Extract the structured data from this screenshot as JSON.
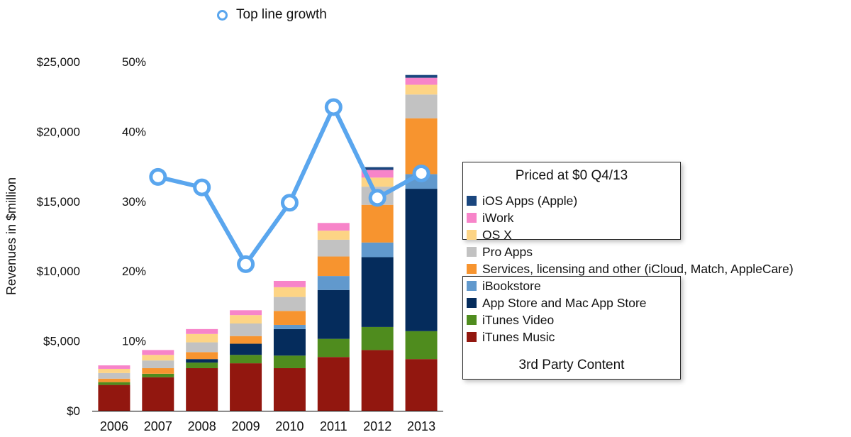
{
  "chart_data": {
    "type": "bar",
    "ylabel": "Revenues in $million",
    "categories": [
      "2006",
      "2007",
      "2008",
      "2009",
      "2010",
      "2011",
      "2012",
      "2013"
    ],
    "y_ticks": [
      "$0",
      "$5,000",
      "$10,000",
      "$15,000",
      "$20,000",
      "$25,000"
    ],
    "ylim": [
      0,
      25000
    ],
    "y2_ticks": [
      "10%",
      "20%",
      "30%",
      "40%",
      "50%"
    ],
    "y2lim": [
      0,
      50
    ],
    "stack_order": [
      "iTunes Music",
      "iTunes Video",
      "App Store and Mac App Store",
      "iBookstore",
      "Services, licensing and other (iCloud, Match, AppleCare)",
      "Pro Apps",
      "OS X",
      "iWork",
      "iOS Apps (Apple)"
    ],
    "series": [
      {
        "name": "iTunes Music",
        "color": "#92170f",
        "values": [
          1850,
          2400,
          3050,
          3400,
          3050,
          3850,
          4350,
          3700
        ]
      },
      {
        "name": "iTunes Video",
        "color": "#4f8c1e",
        "values": [
          200,
          250,
          400,
          600,
          900,
          1300,
          1650,
          2000
        ]
      },
      {
        "name": "App Store and Mac App Store",
        "color": "#052c5c",
        "values": [
          0,
          0,
          250,
          800,
          1900,
          3500,
          5000,
          10200
        ]
      },
      {
        "name": "iBookstore",
        "color": "#6199cd",
        "values": [
          0,
          0,
          0,
          0,
          300,
          1000,
          1050,
          1050
        ]
      },
      {
        "name": "Services, licensing and other (iCloud, Match, AppleCare)",
        "color": "#f7942f",
        "values": [
          250,
          400,
          500,
          550,
          1000,
          1400,
          2700,
          4000
        ]
      },
      {
        "name": "Pro Apps",
        "color": "#c2c2c2",
        "values": [
          400,
          550,
          700,
          900,
          1000,
          1200,
          1300,
          1700
        ]
      },
      {
        "name": "OS X",
        "color": "#fdd485",
        "values": [
          300,
          400,
          600,
          600,
          700,
          650,
          650,
          700
        ]
      },
      {
        "name": "iWork",
        "color": "#f784c9",
        "values": [
          250,
          350,
          350,
          350,
          450,
          550,
          550,
          500
        ]
      },
      {
        "name": "iOS Apps (Apple)",
        "color": "#1a467e",
        "values": [
          0,
          0,
          0,
          0,
          0,
          0,
          200,
          200
        ]
      }
    ],
    "line_series": {
      "name": "Top line growth",
      "color": "#5aa6ee",
      "x": [
        "2007",
        "2008",
        "2009",
        "2010",
        "2011",
        "2012",
        "2013"
      ],
      "values": [
        33.5,
        32,
        21,
        29.8,
        43.5,
        30.5,
        34
      ]
    }
  },
  "legend_box_top": {
    "title": "Priced at $0 Q4/13"
  },
  "legend_box_bottom": {
    "title": "3rd Party Content"
  },
  "legend_items": [
    {
      "label": "iOS Apps (Apple)",
      "color": "#1a467e"
    },
    {
      "label": "iWork",
      "color": "#f784c9"
    },
    {
      "label": "OS X",
      "color": "#fdd485"
    },
    {
      "label": "Pro Apps",
      "color": "#c2c2c2"
    },
    {
      "label": "Services, licensing and other (iCloud, Match, AppleCare)",
      "color": "#f7942f"
    },
    {
      "label": "iBookstore",
      "color": "#6199cd"
    },
    {
      "label": "App Store and Mac App Store",
      "color": "#052c5c"
    },
    {
      "label": "iTunes Video",
      "color": "#4f8c1e"
    },
    {
      "label": "iTunes Music",
      "color": "#92170f"
    }
  ]
}
